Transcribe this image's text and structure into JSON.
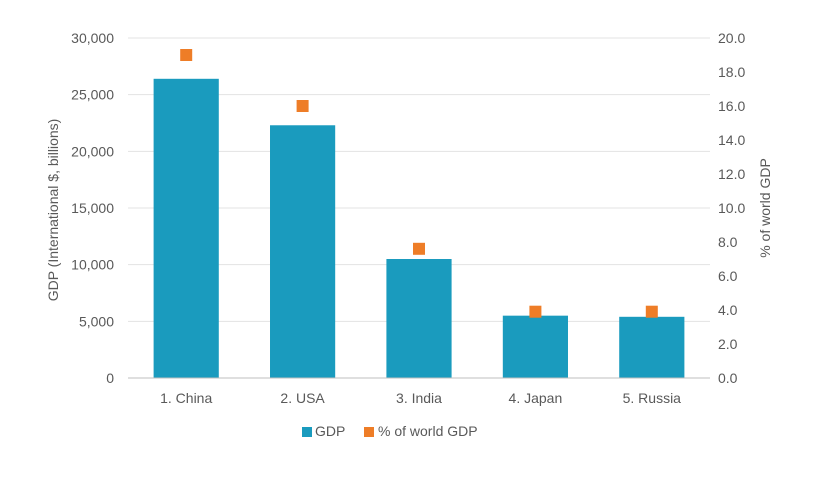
{
  "chart_data": {
    "type": "bar",
    "categories": [
      "1. China",
      "2. USA",
      "3. India",
      "4. Japan",
      "5. Russia"
    ],
    "series": [
      {
        "name": "GDP",
        "kind": "bar",
        "axis": "left",
        "color": "#1A9BBE",
        "values": [
          26400,
          22300,
          10500,
          5500,
          5400
        ]
      },
      {
        "name": "% of world GDP",
        "kind": "marker",
        "axis": "right",
        "color": "#EE7D27",
        "values": [
          19.0,
          16.0,
          7.6,
          3.9,
          3.9
        ]
      }
    ],
    "ylabel": "GDP (International $, billions)",
    "y2label": "% of world GDP",
    "ylim": [
      0,
      30000
    ],
    "y2lim": [
      0,
      20
    ],
    "yticks": [
      "0",
      "5,000",
      "10,000",
      "15,000",
      "20,000",
      "25,000",
      "30,000"
    ],
    "y2ticks": [
      "0.0",
      "2.0",
      "4.0",
      "6.0",
      "8.0",
      "10.0",
      "12.0",
      "14.0",
      "16.0",
      "18.0",
      "20.0"
    ],
    "grid": true,
    "legend": "bottom"
  }
}
